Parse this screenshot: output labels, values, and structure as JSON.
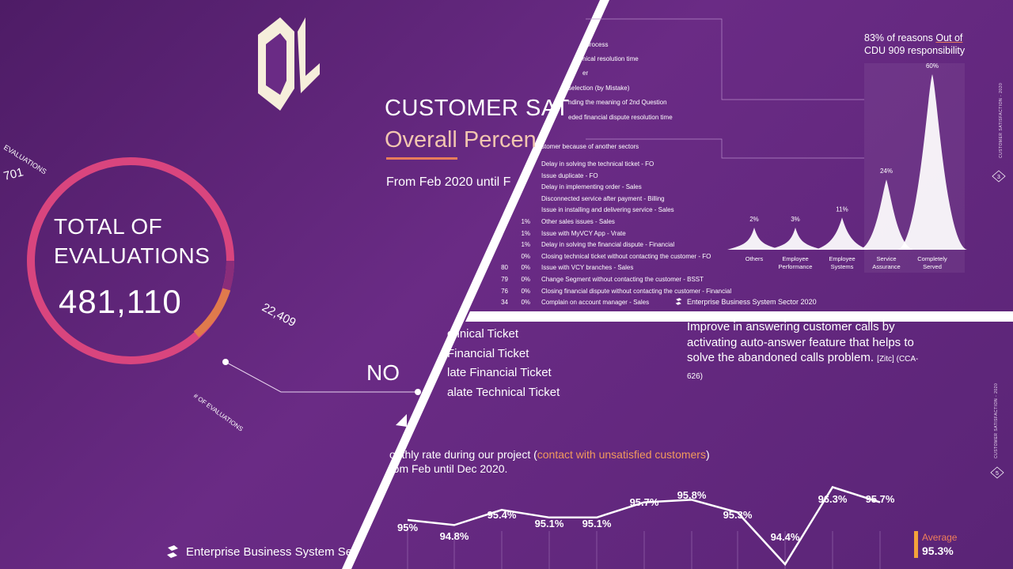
{
  "left_panel": {
    "donut_title_line1": "TOTAL OF",
    "donut_title_line2": "EVALUATIONS",
    "total": "481,110",
    "segment_value": "22,409",
    "partial_label": "EVALUATIONS",
    "partial_value": "701",
    "axis_label": "# OF EVALUATIONS",
    "no_label": "NO",
    "footer": "Enterprise Business System Se",
    "colors": {
      "ring": "#d9457e",
      "accent": "#e07a4c"
    }
  },
  "top_right_panel": {
    "title_line1": "CUSTOMER SAT",
    "title_line2": "Overall Percen",
    "date_range": "From Feb 2020 until F",
    "reasons_partial": [
      "t process",
      "nical resolution time",
      "er",
      "selection (by Mistake)",
      "nding the meaning of 2nd Question",
      "eded financial dispute resolution time",
      "stomer because of another sectors"
    ],
    "reasons_table": [
      {
        "count": "",
        "pct": "",
        "text": "Delay in solving the technical ticket - FO"
      },
      {
        "count": "",
        "pct": "",
        "text": "Issue duplicate - FO"
      },
      {
        "count": "",
        "pct": "",
        "text": "Delay in implementing order - Sales"
      },
      {
        "count": "",
        "pct": "",
        "text": "Disconnected service after payment - Billing"
      },
      {
        "count": "",
        "pct": "",
        "text": "Issue in installing and delivering service - Sales"
      },
      {
        "count": "",
        "pct": "1%",
        "text": "Other sales issues - Sales"
      },
      {
        "count": "",
        "pct": "1%",
        "text": "Issue with MyVCY App - Vrate"
      },
      {
        "count": "",
        "pct": "1%",
        "text": "Delay in solving the financial dispute - Financial"
      },
      {
        "count": "",
        "pct": "0%",
        "text": "Closing technical ticket without contacting the customer - FO"
      },
      {
        "count": "80",
        "pct": "0%",
        "text": "Issue with VCY branches - Sales"
      },
      {
        "count": "79",
        "pct": "0%",
        "text": "Change Segment without contacting the customer - BSST"
      },
      {
        "count": "76",
        "pct": "0%",
        "text": "Closing financial dispute without contacting the customer - Financial"
      },
      {
        "count": "34",
        "pct": "0%",
        "text": "Complain on account manager - Sales"
      }
    ],
    "annotation_line1": "83% of reasons ",
    "annotation_underlined": "Out of",
    "annotation_line2": "CDU 909 responsibility",
    "footer": "Enterprise Business System Sector 2020",
    "side_text": "CUSTOMER SATISFACTION - 2020",
    "page_number": "3"
  },
  "bottom_right_panel": {
    "tickets": [
      "chnical Ticket",
      "Financial Ticket",
      "late Financial Ticket",
      "alate Technical Ticket"
    ],
    "improve_text": "Improve in answering customer calls by activating auto-answer feature that helps to solve the abandoned calls problem.",
    "improve_ref": "[Zitc] (CCA-626)",
    "monthly_prefix": "onthly rate during our project (",
    "monthly_highlight": "contact with unsatisfied customers",
    "monthly_suffix": ")",
    "monthly_line2": "rom Feb until Dec 2020.",
    "average_label": "Average",
    "average_value": "95.3%",
    "side_text": "CUSTOMER SATISFACTION - 2020",
    "page_number": "5"
  },
  "chart_data": [
    {
      "type": "area",
      "categories": [
        "Others",
        "Employee Performance",
        "Employee Systems",
        "Service Assurance",
        "Completely Served"
      ],
      "values": [
        2,
        3,
        11,
        24,
        60
      ],
      "value_labels": [
        "2%",
        "3%",
        "11%",
        "24%",
        "60%"
      ],
      "highlighted_range": [
        "Service Assurance",
        "Completely Served"
      ]
    },
    {
      "type": "line",
      "values": [
        95.0,
        94.8,
        95.4,
        95.1,
        95.1,
        95.7,
        95.8,
        95.3,
        94.4,
        96.3,
        95.7
      ],
      "value_labels": [
        "95%",
        "94.8%",
        "95.4%",
        "95.1%",
        "95.1%",
        "95.7%",
        "95.8%",
        "95.3%",
        "94.4%",
        "96.3%",
        "95.7%"
      ],
      "extra_drawn_points": [
        94.0
      ],
      "average": 95.3
    }
  ]
}
